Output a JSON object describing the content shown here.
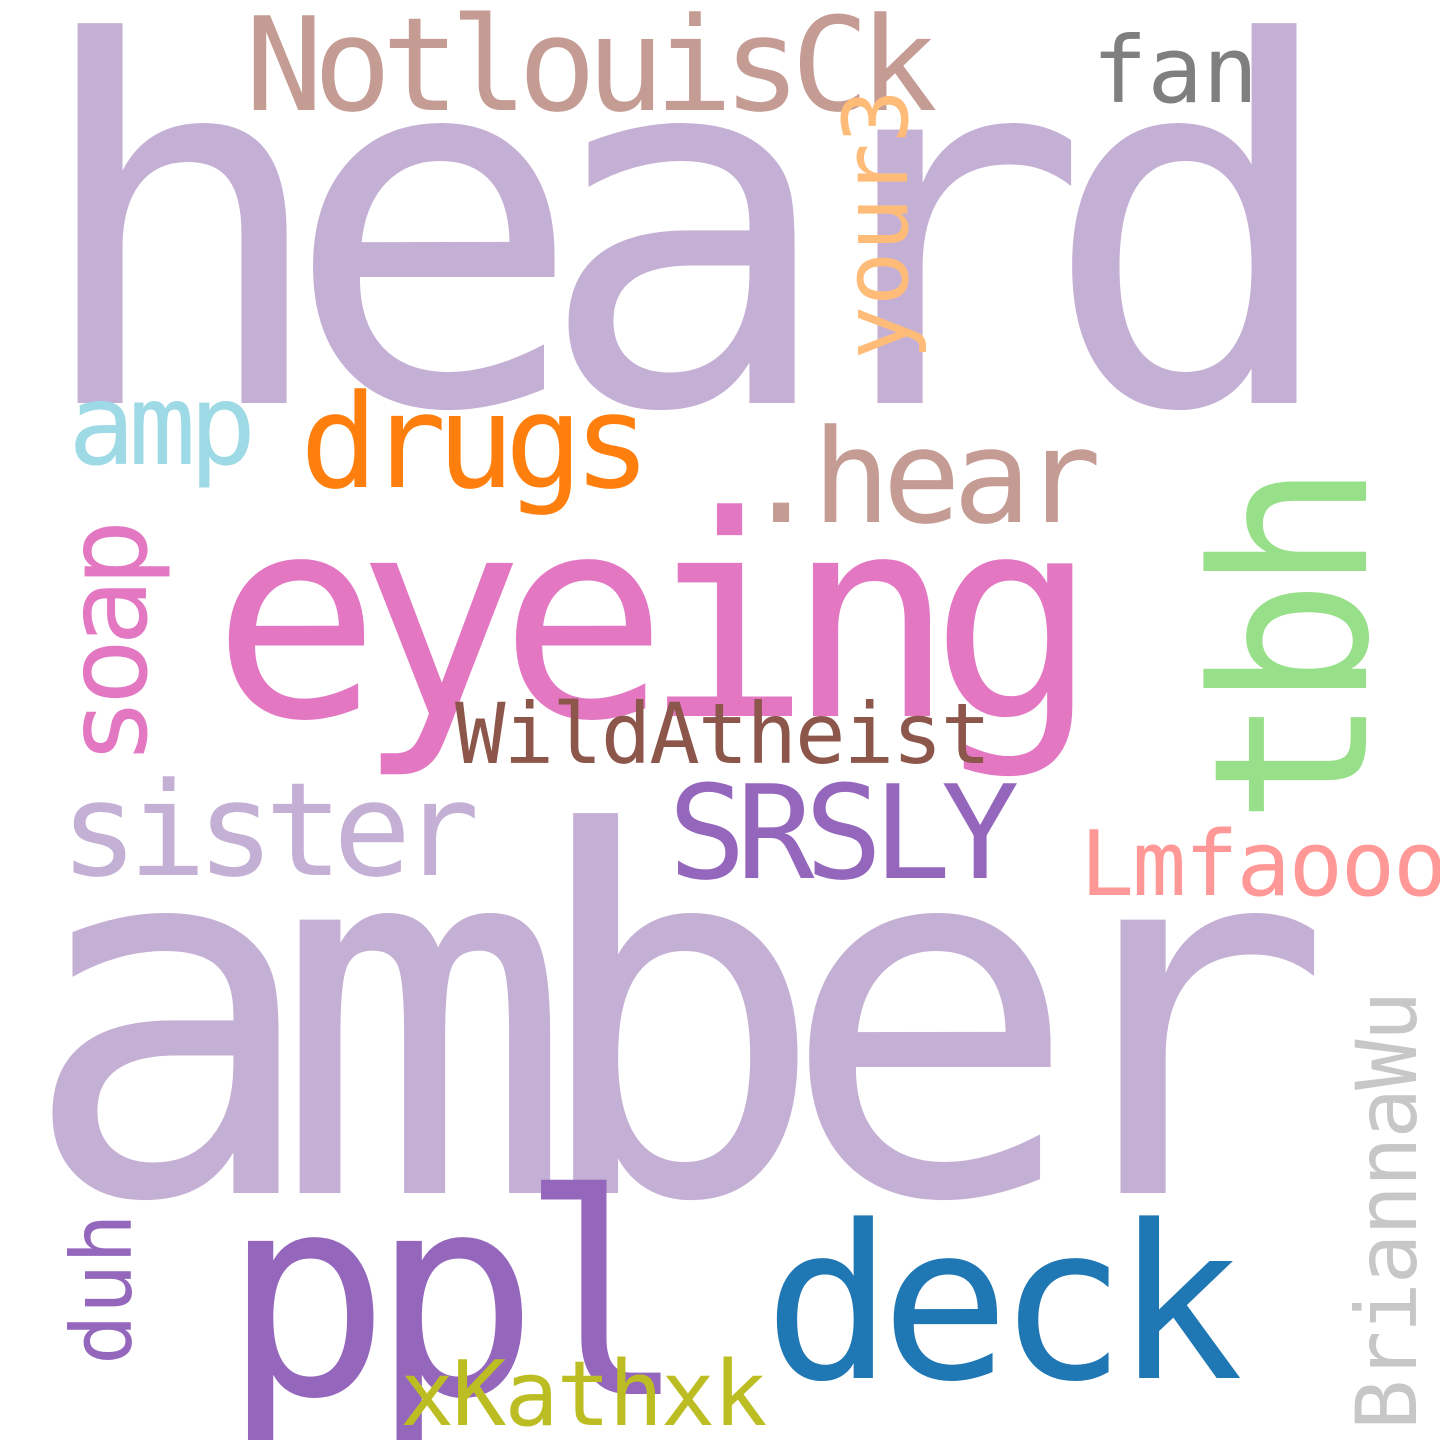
{
  "words": {
    "heard": {
      "text": "heard",
      "color": "#c5b0d5"
    },
    "amber": {
      "text": "amber",
      "color": "#c5b0d5"
    },
    "eyeing": {
      "text": "eyeing",
      "color": "#e377c2"
    },
    "notlouisck": {
      "text": "NotlouisCk",
      "color": "#c49c94"
    },
    "fan": {
      "text": "fan",
      "color": "#7f7f7f"
    },
    "your3": {
      "text": "your3",
      "color": "#ffbb78"
    },
    "amp": {
      "text": "amp",
      "color": "#9edae5"
    },
    "drugs": {
      "text": "drugs",
      "color": "#ff7f0e"
    },
    "hear": {
      "text": ".hear",
      "color": "#c49c94"
    },
    "tbh": {
      "text": "tbh",
      "color": "#98df8a"
    },
    "soap": {
      "text": "soap",
      "color": "#e377c2"
    },
    "wildatheist": {
      "text": "WildAtheist",
      "color": "#8c564b"
    },
    "sister": {
      "text": "sister",
      "color": "#c5b0d5"
    },
    "srsly": {
      "text": "SRSLY",
      "color": "#9467bd"
    },
    "lmfaooo": {
      "text": "Lmfaooo",
      "color": "#ff9896"
    },
    "ppl": {
      "text": "ppl",
      "color": "#9467bd"
    },
    "deck": {
      "text": "deck",
      "color": "#1f77b4"
    },
    "duh": {
      "text": "duh",
      "color": "#9467bd"
    },
    "xkathxk": {
      "text": "xKathxk",
      "color": "#bcbd22"
    },
    "briannawu": {
      "text": "BriannaWu",
      "color": "#c7c7c7"
    }
  }
}
